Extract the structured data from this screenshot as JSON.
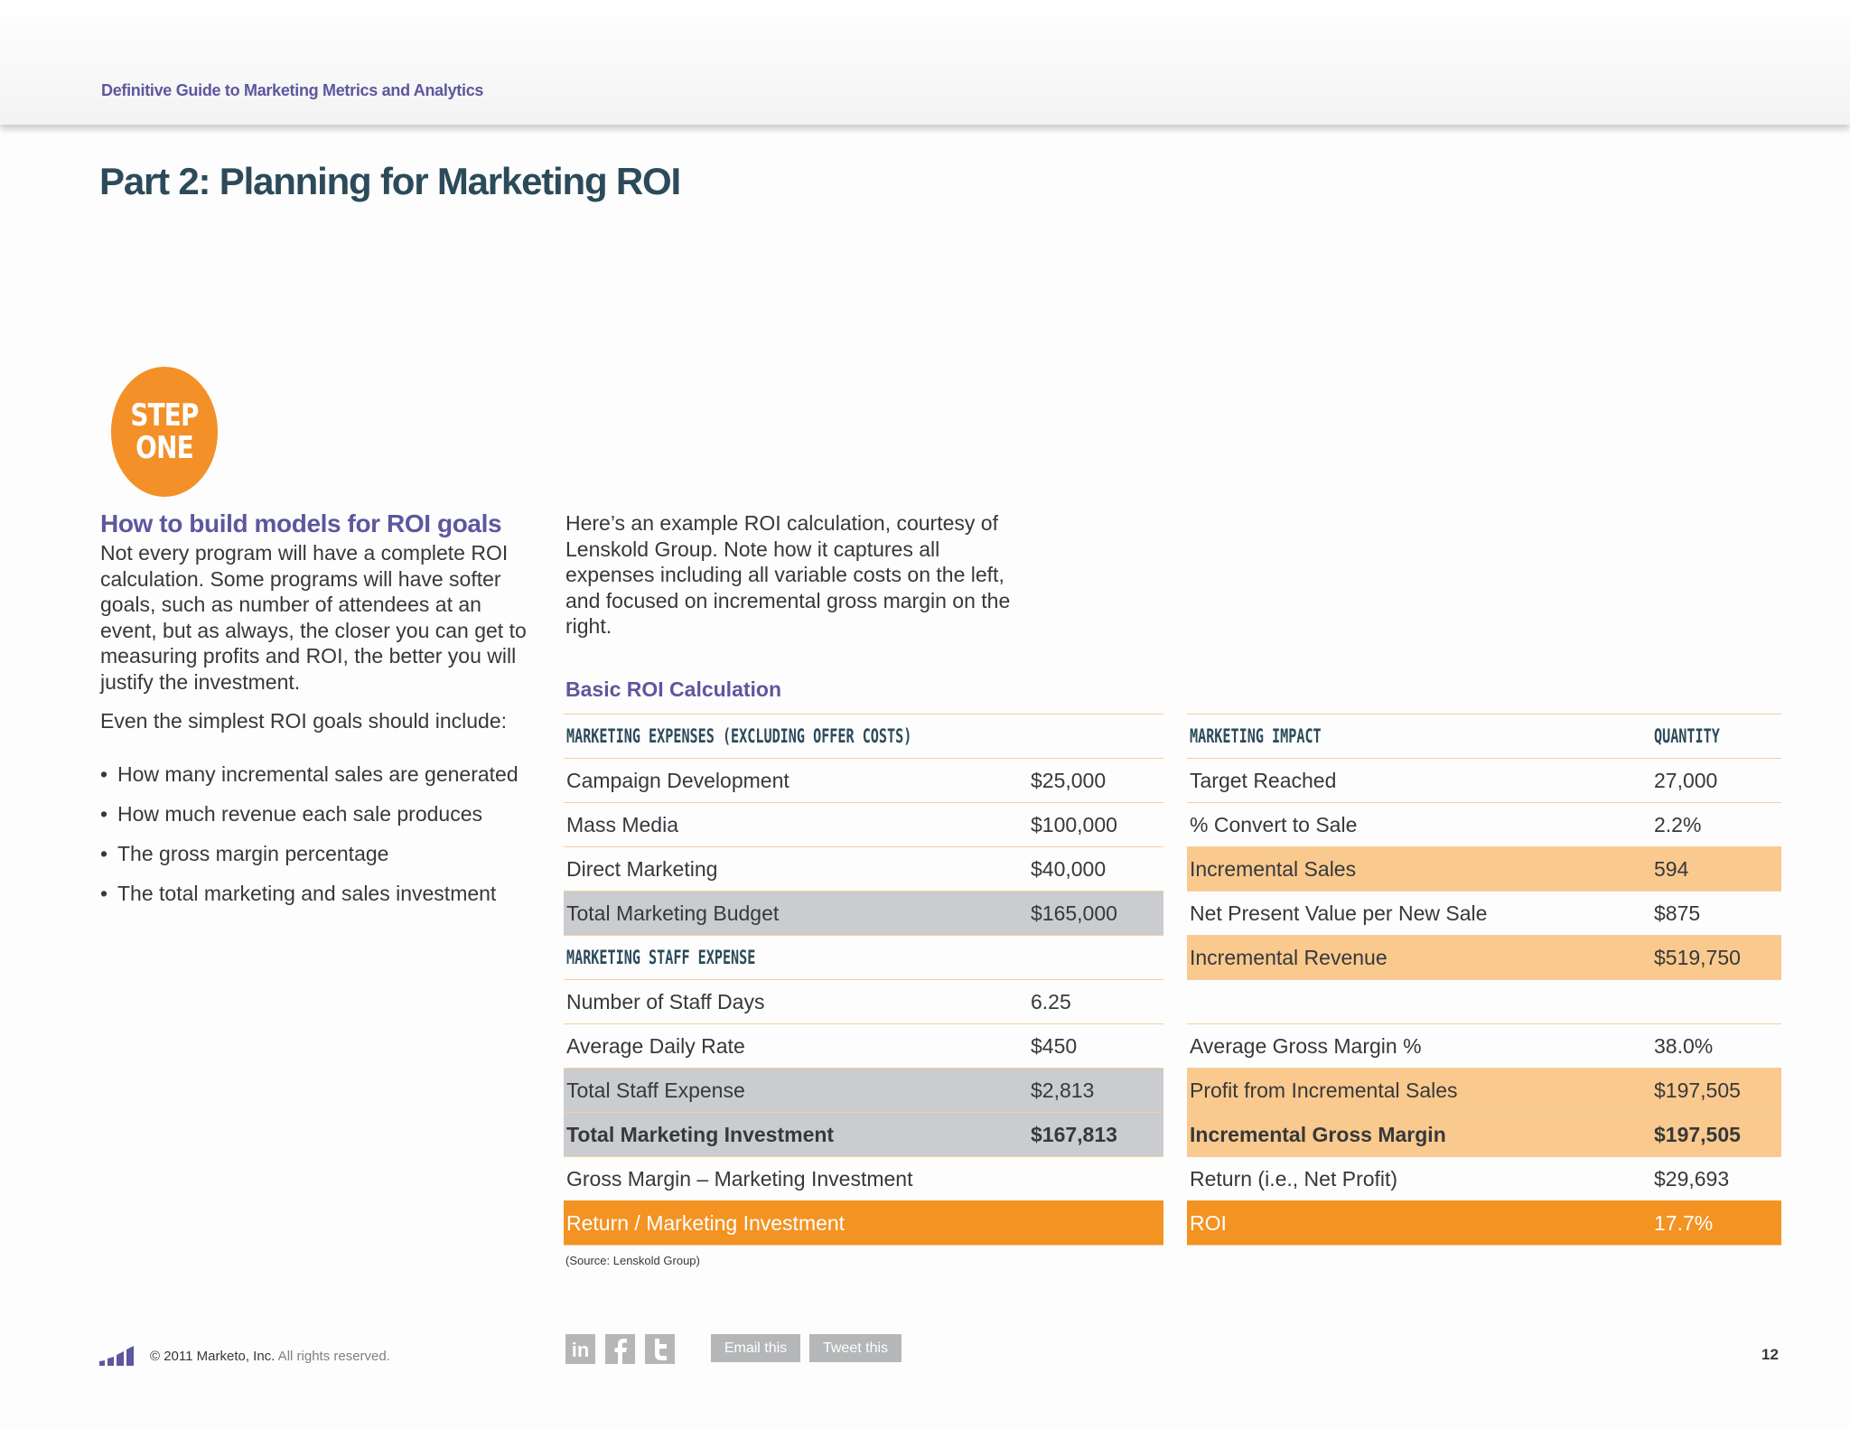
{
  "header": {
    "title": "Definitive Guide to Marketing Metrics and Analytics"
  },
  "page_title": "Part 2: Planning for Marketing ROI",
  "step_badge": {
    "line1": "STEP",
    "line2": "ONE",
    "color": "#f39028"
  },
  "left_column": {
    "heading": "How to build models for ROI goals",
    "paragraph": "Not every program will have a complete ROI calculation. Some programs will have softer goals, such as number of attendees at an event, but as always, the closer you can get to measuring profits and ROI, the better you will justify the investment.",
    "paragraph2": "Even the simplest ROI goals should include:",
    "bullets": [
      "How many incremental sales are generated",
      "How much revenue each sale produces",
      "The gross margin percentage",
      "The total marketing and sales investment"
    ]
  },
  "intro": "Here’s an example ROI calculation, courtesy of Lenskold Group. Note how it captures all expenses including all variable costs on the left, and focused on incremental gross margin on the right.",
  "table": {
    "title": "Basic ROI Calculation",
    "left": {
      "header": "MARKETING  EXPENSES (EXCLUDING OFFER COSTS)",
      "rows": [
        {
          "label": "Campaign Development",
          "value": "$25,000"
        },
        {
          "label": "Mass Media",
          "value": "$100,000"
        },
        {
          "label": "Direct Marketing",
          "value": "$40,000"
        },
        {
          "label": "Total Marketing Budget",
          "value": "$165,000"
        },
        {
          "label": "MARKETING STAFF EXPENSE",
          "value": ""
        },
        {
          "label": "Number of Staff Days",
          "value": "6.25"
        },
        {
          "label": "Average Daily Rate",
          "value": "$450"
        },
        {
          "label": "Total Staff Expense",
          "value": "$2,813"
        },
        {
          "label": "Total Marketing Investment",
          "value": "$167,813"
        },
        {
          "label": "Gross Margin – Marketing Investment",
          "value": ""
        },
        {
          "label": "Return / Marketing Investment",
          "value": ""
        }
      ]
    },
    "right": {
      "header_label": "MARKETING IMPACT",
      "header_value": "QUANTITY",
      "rows": [
        {
          "label": "Target Reached",
          "value": "27,000"
        },
        {
          "label": "% Convert to Sale",
          "value": "2.2%"
        },
        {
          "label": "Incremental Sales",
          "value": "594"
        },
        {
          "label": "Net Present Value per New Sale",
          "value": "$875"
        },
        {
          "label": "Incremental Revenue",
          "value": "$519,750"
        },
        {
          "label": "",
          "value": ""
        },
        {
          "label": "Average Gross Margin %",
          "value": "38.0%"
        },
        {
          "label": "Profit from Incremental Sales",
          "value": "$197,505"
        },
        {
          "label": "Incremental Gross Margin",
          "value": "$197,505"
        },
        {
          "label": "Return (i.e., Net Profit)",
          "value": "$29,693"
        },
        {
          "label": "ROI",
          "value": "17.7%"
        }
      ]
    },
    "source": "(Source: Lenskold Group)",
    "colors": {
      "gray": "#cbcccf",
      "peach": "#fac98e",
      "orange": "#f39322"
    }
  },
  "footer": {
    "copyright_main": "© 2011 Marketo, Inc.",
    "copyright_rest": " All rights reserved.",
    "social_icons": [
      "linkedin-icon",
      "facebook-icon",
      "twitter-icon"
    ],
    "linkedin_text": "in",
    "email_label": "Email this",
    "tweet_label": "Tweet this",
    "page_number": "12"
  }
}
